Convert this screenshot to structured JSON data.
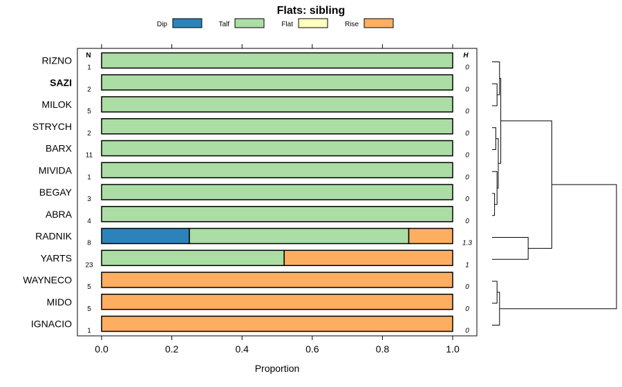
{
  "chart_data": {
    "type": "bar",
    "orientation": "horizontal",
    "stacked": true,
    "title": "Flats: sibling",
    "xlabel": "Proportion",
    "xlim": [
      0,
      1
    ],
    "xticks": [
      "0.0",
      "0.2",
      "0.4",
      "0.6",
      "0.8",
      "1.0"
    ],
    "n_header": "N",
    "h_header": "H",
    "legend": [
      {
        "name": "Dip",
        "color": "#2b83ba"
      },
      {
        "name": "Talf",
        "color": "#abdda4"
      },
      {
        "name": "Flat",
        "color": "#ffffbf"
      },
      {
        "name": "Rise",
        "color": "#fdae61"
      }
    ],
    "rows": [
      {
        "label": "RIZNO",
        "n": "1",
        "h": "0",
        "bold": false,
        "values": [
          0,
          1,
          0,
          0
        ]
      },
      {
        "label": "SAZI",
        "n": "2",
        "h": "0",
        "bold": true,
        "values": [
          0,
          1,
          0,
          0
        ]
      },
      {
        "label": "MILOK",
        "n": "5",
        "h": "0",
        "bold": false,
        "values": [
          0,
          1,
          0,
          0
        ]
      },
      {
        "label": "STRYCH",
        "n": "2",
        "h": "0",
        "bold": false,
        "values": [
          0,
          1,
          0,
          0
        ]
      },
      {
        "label": "BARX",
        "n": "11",
        "h": "0",
        "bold": false,
        "values": [
          0,
          1,
          0,
          0
        ]
      },
      {
        "label": "MIVIDA",
        "n": "1",
        "h": "0",
        "bold": false,
        "values": [
          0,
          1,
          0,
          0
        ]
      },
      {
        "label": "BEGAY",
        "n": "3",
        "h": "0",
        "bold": false,
        "values": [
          0,
          1,
          0,
          0
        ]
      },
      {
        "label": "ABRA",
        "n": "4",
        "h": "0",
        "bold": false,
        "values": [
          0,
          1,
          0,
          0
        ]
      },
      {
        "label": "RADNIK",
        "n": "8",
        "h": "1.3",
        "bold": false,
        "values": [
          0.25,
          0.625,
          0,
          0.125
        ]
      },
      {
        "label": "YARTS",
        "n": "23",
        "h": "1",
        "bold": false,
        "values": [
          0,
          0.52,
          0,
          0.48
        ]
      },
      {
        "label": "WAYNECO",
        "n": "5",
        "h": "0",
        "bold": false,
        "values": [
          0,
          0,
          0,
          1
        ]
      },
      {
        "label": "MIDO",
        "n": "5",
        "h": "0",
        "bold": false,
        "values": [
          0,
          0,
          0,
          1
        ]
      },
      {
        "label": "IGNACIO",
        "n": "1",
        "h": "0",
        "bold": false,
        "values": [
          0,
          0,
          0,
          1
        ]
      }
    ],
    "dendrogram": {
      "description": "hierarchical clustering of rows",
      "merges": [
        {
          "a": 1,
          "b": 2,
          "height": 0.04
        },
        {
          "a": "m0",
          "b": 0,
          "height": 0.06
        },
        {
          "a": 3,
          "b": 4,
          "height": 0.03
        },
        {
          "a": 6,
          "b": 7,
          "height": 0.02
        },
        {
          "a": 5,
          "b": "m3",
          "height": 0.04
        },
        {
          "a": "m2",
          "b": "m4",
          "height": 0.05
        },
        {
          "a": "m1",
          "b": "m5",
          "height": 0.07
        },
        {
          "a": 8,
          "b": 9,
          "height": 0.29
        },
        {
          "a": "m6",
          "b": "m7",
          "height": 0.48
        },
        {
          "a": 10,
          "b": 11,
          "height": 0.04
        },
        {
          "a": "m9",
          "b": 12,
          "height": 0.06
        },
        {
          "a": "m8",
          "b": "m10",
          "height": 1.0
        }
      ]
    }
  }
}
